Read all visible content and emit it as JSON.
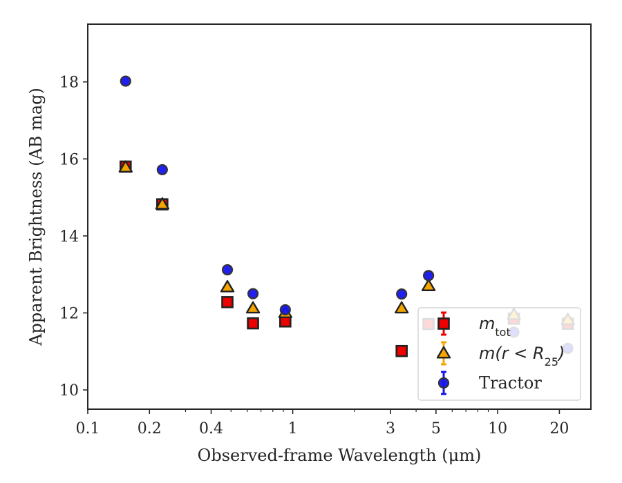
{
  "chart_data": {
    "type": "scatter",
    "title": "",
    "xlabel": "Observed-frame Wavelength (μm)",
    "ylabel": "Apparent Brightness (AB mag)",
    "xscale": "log",
    "xlim": [
      0.1,
      28.5
    ],
    "ylim": [
      19.5,
      9.5
    ],
    "y_inverted": true,
    "x_ticks": [
      {
        "value": 0.1,
        "label": "0.1"
      },
      {
        "value": 0.2,
        "label": "0.2"
      },
      {
        "value": 0.4,
        "label": "0.4"
      },
      {
        "value": 1,
        "label": "1"
      },
      {
        "value": 3,
        "label": "3"
      },
      {
        "value": 5,
        "label": "5"
      },
      {
        "value": 10,
        "label": "10"
      },
      {
        "value": 20,
        "label": "20"
      }
    ],
    "y_ticks": [
      {
        "value": 10,
        "label": "10"
      },
      {
        "value": 12,
        "label": "12"
      },
      {
        "value": 14,
        "label": "14"
      },
      {
        "value": 16,
        "label": "16"
      },
      {
        "value": 18,
        "label": "18"
      }
    ],
    "grid": false,
    "legend_position": "bottom-right",
    "series": [
      {
        "name": "m_tot",
        "legend_label": "m",
        "legend_sub": "tot",
        "marker": "square",
        "color": "#ee0000",
        "x": [
          0.153,
          0.231,
          0.48,
          0.64,
          0.92,
          3.4,
          4.6,
          12,
          22
        ],
        "y": [
          15.8,
          14.82,
          12.28,
          11.73,
          11.78,
          11.01,
          11.71,
          11.85,
          11.72
        ]
      },
      {
        "name": "m(r < R25)",
        "legend_label": "m(r < R",
        "legend_sub": "25",
        "legend_suffix": ")",
        "marker": "triangle",
        "color": "#f5a500",
        "x": [
          0.153,
          0.231,
          0.48,
          0.64,
          0.92,
          3.4,
          4.6,
          12,
          22
        ],
        "y": [
          15.78,
          14.82,
          12.67,
          12.12,
          12.0,
          12.12,
          12.7,
          11.95,
          11.82
        ]
      },
      {
        "name": "Tractor",
        "legend_label": "Tractor",
        "marker": "circle",
        "color": "#1515ee",
        "x": [
          0.153,
          0.231,
          0.48,
          0.64,
          0.92,
          3.4,
          4.6,
          12,
          22
        ],
        "y": [
          18.02,
          15.72,
          13.12,
          12.5,
          12.08,
          12.49,
          12.97,
          11.5,
          11.08
        ]
      }
    ]
  }
}
